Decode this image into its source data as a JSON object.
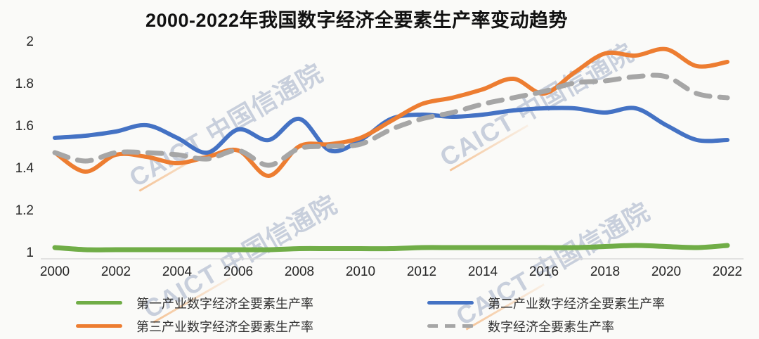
{
  "title": "2000-2022年我国数字经济全要素生产率变动趋势",
  "watermark": {
    "text": "CAICT 中国信通院"
  },
  "colors": {
    "primary_industry": "#70AD47",
    "secondary_industry": "#4472C4",
    "tertiary_industry": "#ED7D31",
    "overall": "#A6A6A6",
    "axis_line": "#D9D9D9",
    "tick_text": "#262626"
  },
  "chart_data": {
    "type": "line",
    "title": "2000-2022年我国数字经济全要素生产率变动趋势",
    "x": [
      2000,
      2001,
      2002,
      2003,
      2004,
      2005,
      2006,
      2007,
      2008,
      2009,
      2010,
      2011,
      2012,
      2013,
      2014,
      2015,
      2016,
      2017,
      2018,
      2019,
      2020,
      2021,
      2022
    ],
    "x_tick_step": 2,
    "xlabel": "",
    "ylabel": "",
    "y_ticks": [
      1,
      1.2,
      1.4,
      1.6,
      1.8,
      2
    ],
    "ylim": [
      1,
      2
    ],
    "grid": false,
    "smoothed_lines": true,
    "legend_position": "bottom",
    "series": [
      {
        "name": "第一产业数字经济全要素生产率",
        "color": "#70AD47",
        "style": "solid",
        "values": [
          1.02,
          1.01,
          1.01,
          1.01,
          1.01,
          1.01,
          1.01,
          1.01,
          1.015,
          1.015,
          1.015,
          1.015,
          1.02,
          1.02,
          1.02,
          1.02,
          1.02,
          1.02,
          1.025,
          1.03,
          1.025,
          1.02,
          1.03
        ]
      },
      {
        "name": "第二产业数字经济全要素生产率",
        "color": "#4472C4",
        "style": "solid",
        "values": [
          1.54,
          1.55,
          1.57,
          1.6,
          1.54,
          1.47,
          1.58,
          1.53,
          1.63,
          1.48,
          1.53,
          1.63,
          1.65,
          1.64,
          1.65,
          1.67,
          1.68,
          1.68,
          1.66,
          1.68,
          1.6,
          1.53,
          1.53
        ]
      },
      {
        "name": "第三产业数字经济全要素生产率",
        "color": "#ED7D31",
        "style": "solid",
        "values": [
          1.47,
          1.38,
          1.46,
          1.45,
          1.42,
          1.45,
          1.48,
          1.36,
          1.5,
          1.51,
          1.54,
          1.62,
          1.7,
          1.73,
          1.77,
          1.82,
          1.75,
          1.85,
          1.94,
          1.93,
          1.96,
          1.88,
          1.9
        ]
      },
      {
        "name": "数字经济全要素生产率",
        "color": "#A6A6A6",
        "style": "dashed",
        "values": [
          1.47,
          1.43,
          1.47,
          1.47,
          1.46,
          1.44,
          1.48,
          1.41,
          1.49,
          1.5,
          1.51,
          1.58,
          1.63,
          1.66,
          1.7,
          1.73,
          1.76,
          1.8,
          1.81,
          1.83,
          1.83,
          1.75,
          1.73
        ]
      }
    ]
  },
  "legend": {
    "columns": [
      {
        "items": [
          {
            "label": "第一产业数字经济全要素生产率",
            "color": "#70AD47",
            "dashed": false
          },
          {
            "label": "第三产业数字经济全要素生产率",
            "color": "#ED7D31",
            "dashed": false
          }
        ]
      },
      {
        "items": [
          {
            "label": "第二产业数字经济全要素生产率",
            "color": "#4472C4",
            "dashed": false
          },
          {
            "label": "数字经济全要素生产率",
            "color": "#A6A6A6",
            "dashed": true
          }
        ]
      }
    ]
  }
}
